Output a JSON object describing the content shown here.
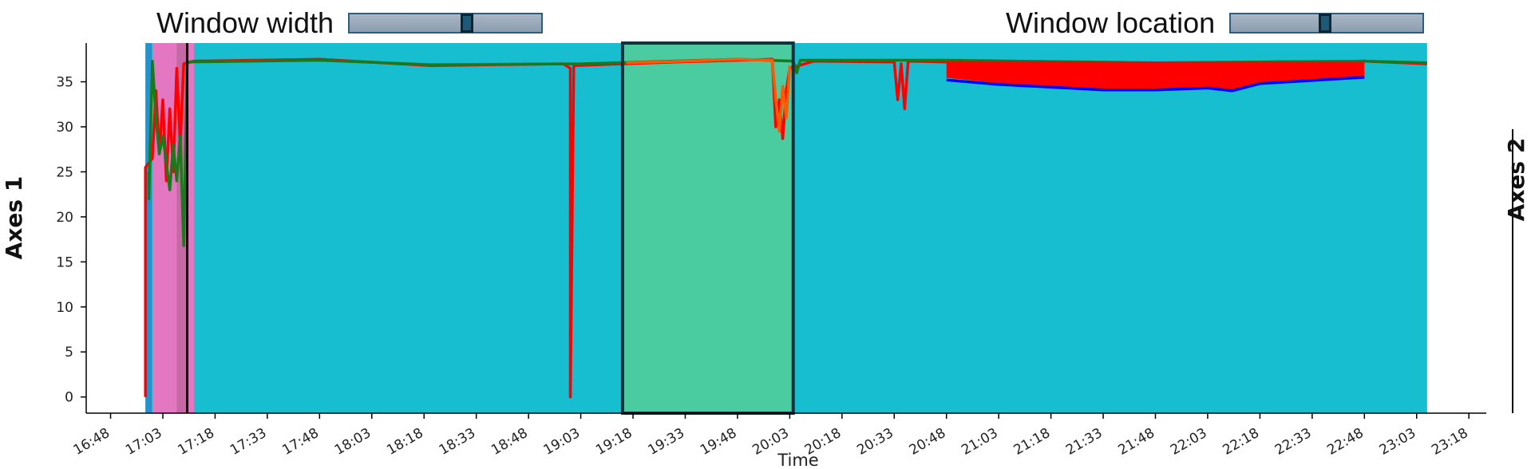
{
  "controls": {
    "window_width": {
      "label": "Window width",
      "value": 0.62
    },
    "window_location": {
      "label": "Window location",
      "value": 0.49
    }
  },
  "colors": {
    "background": "#17becf",
    "window_fill": "#4acba0",
    "pink_band": "#e377c2",
    "red": "#ff0000",
    "blue": "#0000ff",
    "green": "#1a7a1a",
    "orange": "#ff5a00",
    "cursor": "#000000"
  },
  "chart_data": {
    "type": "line",
    "xlabel": "Time",
    "ylabel": "Axes 1",
    "y2label": "Axes 2",
    "xlim": [
      "16:41",
      "23:23"
    ],
    "ylim": [
      -1.8,
      39.3
    ],
    "x_ticks": [
      "16:48",
      "17:03",
      "17:18",
      "17:33",
      "17:48",
      "18:03",
      "18:18",
      "18:33",
      "18:48",
      "19:03",
      "19:18",
      "19:33",
      "19:48",
      "20:03",
      "20:18",
      "20:33",
      "20:48",
      "21:03",
      "21:18",
      "21:33",
      "21:48",
      "22:03",
      "22:18",
      "22:33",
      "22:48",
      "23:03",
      "23:18"
    ],
    "y_ticks": [
      0,
      5,
      10,
      15,
      20,
      25,
      30,
      35
    ],
    "bands": [
      {
        "type": "background",
        "start": "16:58",
        "end": "23:06"
      },
      {
        "type": "pink",
        "start": "17:00",
        "end": "17:12"
      },
      {
        "type": "window",
        "start": "19:15",
        "end": "20:04"
      }
    ],
    "cursor": "17:10",
    "series": [
      {
        "color": "red",
        "points": [
          [
            "16:58",
            0
          ],
          [
            "16:58",
            25.5
          ],
          [
            "17:00",
            26.5
          ],
          [
            "17:01",
            34
          ],
          [
            "17:02",
            27
          ],
          [
            "17:03",
            33
          ],
          [
            "17:04",
            24
          ],
          [
            "17:05",
            32
          ],
          [
            "17:06",
            25
          ],
          [
            "17:07",
            36.5
          ],
          [
            "17:08",
            28
          ],
          [
            "17:09",
            37
          ],
          [
            "17:12",
            37.3
          ],
          [
            "17:48",
            37.5
          ],
          [
            "18:20",
            36.8
          ],
          [
            "18:58",
            37
          ],
          [
            "19:00",
            36.5
          ],
          [
            "19:00",
            0
          ],
          [
            "19:01",
            36.8
          ],
          [
            "19:30",
            37.2
          ],
          [
            "19:58",
            37.5
          ],
          [
            "19:59",
            30
          ],
          [
            "20:00",
            33
          ],
          [
            "20:01",
            28.7
          ],
          [
            "20:02",
            34
          ],
          [
            "20:03",
            36.5
          ],
          [
            "20:10",
            37.3
          ],
          [
            "20:33",
            37.2
          ],
          [
            "20:34",
            33
          ],
          [
            "20:35",
            37
          ],
          [
            "20:36",
            32
          ],
          [
            "20:37",
            37.3
          ],
          [
            "20:48",
            37.2
          ],
          [
            "21:03",
            37.2
          ],
          [
            "21:48",
            36.9
          ],
          [
            "22:18",
            37.2
          ],
          [
            "22:48",
            37.3
          ],
          [
            "23:06",
            37
          ]
        ]
      },
      {
        "color": "red",
        "points": [
          [
            "20:48",
            35.6
          ],
          [
            "21:03",
            35
          ],
          [
            "21:18",
            34.7
          ],
          [
            "21:33",
            34.4
          ],
          [
            "21:48",
            34.4
          ],
          [
            "22:03",
            34.6
          ],
          [
            "22:10",
            34.3
          ],
          [
            "22:18",
            35.1
          ],
          [
            "22:48",
            35.8
          ]
        ]
      },
      {
        "color": "blue",
        "points": [
          [
            "20:48",
            35.2
          ],
          [
            "21:03",
            34.7
          ],
          [
            "21:18",
            34.4
          ],
          [
            "21:33",
            34.1
          ],
          [
            "21:48",
            34.1
          ],
          [
            "22:03",
            34.3
          ],
          [
            "22:10",
            34
          ],
          [
            "22:18",
            34.8
          ],
          [
            "22:48",
            35.5
          ]
        ]
      },
      {
        "color": "green",
        "points": [
          [
            "16:59",
            25
          ],
          [
            "16:59",
            22
          ],
          [
            "17:00",
            37.3
          ],
          [
            "17:01",
            31
          ],
          [
            "17:02",
            27
          ],
          [
            "17:03",
            29
          ],
          [
            "17:05",
            23
          ],
          [
            "17:06",
            28
          ],
          [
            "17:07",
            24
          ],
          [
            "17:08",
            29
          ],
          [
            "17:09",
            16.8
          ],
          [
            "17:10",
            37.2
          ],
          [
            "17:48",
            37.4
          ],
          [
            "18:20",
            36.9
          ],
          [
            "19:03",
            37
          ],
          [
            "19:48",
            37.5
          ],
          [
            "20:04",
            37.3
          ],
          [
            "20:05",
            36
          ],
          [
            "20:06",
            37.4
          ],
          [
            "20:48",
            37.4
          ],
          [
            "21:48",
            37.1
          ],
          [
            "22:48",
            37.3
          ],
          [
            "23:06",
            37.1
          ]
        ]
      },
      {
        "color": "orange",
        "points": [
          [
            "19:16",
            37.1
          ],
          [
            "19:33",
            37.3
          ],
          [
            "19:48",
            37.5
          ],
          [
            "19:58",
            37.4
          ],
          [
            "19:59",
            33
          ],
          [
            "20:00",
            29.5
          ],
          [
            "20:01",
            34.5
          ],
          [
            "20:02",
            31
          ],
          [
            "20:03",
            36.8
          ]
        ]
      }
    ]
  }
}
